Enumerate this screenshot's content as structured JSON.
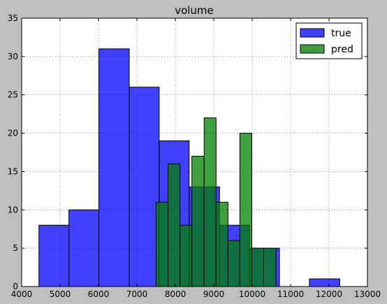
{
  "chart_data": {
    "type": "bar",
    "title": "volume",
    "xlabel": "",
    "ylabel": "",
    "xlim": [
      4000,
      13000
    ],
    "ylim": [
      0,
      35
    ],
    "xticks": [
      4000,
      5000,
      6000,
      7000,
      8000,
      9000,
      10000,
      11000,
      12000,
      13000
    ],
    "yticks": [
      0,
      5,
      10,
      15,
      20,
      25,
      30,
      35
    ],
    "grid": true,
    "legend_position": "top-right",
    "series": [
      {
        "name": "true",
        "color": "#0000ff",
        "alpha": 0.75,
        "bins": [
          {
            "x0": 4450,
            "x1": 5230,
            "value": 8
          },
          {
            "x0": 5230,
            "x1": 6010,
            "value": 10
          },
          {
            "x0": 6010,
            "x1": 6800,
            "value": 31
          },
          {
            "x0": 6800,
            "x1": 7580,
            "value": 26
          },
          {
            "x0": 7580,
            "x1": 8360,
            "value": 19
          },
          {
            "x0": 8360,
            "x1": 9150,
            "value": 13
          },
          {
            "x0": 9150,
            "x1": 9930,
            "value": 8
          },
          {
            "x0": 9930,
            "x1": 10710,
            "value": 5
          },
          {
            "x0": 10710,
            "x1": 11490,
            "value": 0
          },
          {
            "x0": 11490,
            "x1": 12280,
            "value": 1
          }
        ]
      },
      {
        "name": "pred",
        "color": "#008000",
        "alpha": 0.75,
        "bins": [
          {
            "x0": 7500,
            "x1": 7810,
            "value": 11
          },
          {
            "x0": 7810,
            "x1": 8120,
            "value": 16
          },
          {
            "x0": 8120,
            "x1": 8430,
            "value": 8
          },
          {
            "x0": 8430,
            "x1": 8750,
            "value": 17
          },
          {
            "x0": 8750,
            "x1": 9060,
            "value": 22
          },
          {
            "x0": 9060,
            "x1": 9370,
            "value": 11
          },
          {
            "x0": 9370,
            "x1": 9680,
            "value": 6
          },
          {
            "x0": 9680,
            "x1": 9990,
            "value": 20
          },
          {
            "x0": 9990,
            "x1": 10300,
            "value": 5
          },
          {
            "x0": 10300,
            "x1": 10620,
            "value": 5
          }
        ]
      }
    ]
  }
}
